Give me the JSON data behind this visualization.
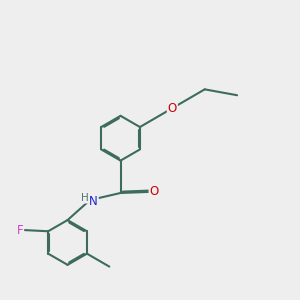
{
  "bg_color": "#eeeeee",
  "bond_color": "#3d6b5e",
  "bond_lw": 1.5,
  "atom_colors": {
    "O": "#cc0000",
    "N": "#2222cc",
    "F": "#cc44cc",
    "H": "#4a7a6a"
  },
  "font_size": 8.5,
  "ring_r": 0.38,
  "figsize": [
    3.0,
    3.0
  ],
  "dpi": 100
}
